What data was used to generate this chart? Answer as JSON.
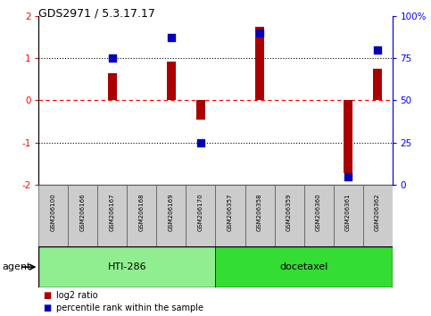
{
  "title": "GDS2971 / 5.3.17.17",
  "samples": [
    "GSM206100",
    "GSM206166",
    "GSM206167",
    "GSM206168",
    "GSM206169",
    "GSM206170",
    "GSM206357",
    "GSM206358",
    "GSM206359",
    "GSM206360",
    "GSM206361",
    "GSM206362"
  ],
  "log2_ratio": [
    0.0,
    0.0,
    0.65,
    0.0,
    0.92,
    -0.45,
    0.0,
    1.75,
    0.0,
    0.0,
    -1.72,
    0.75
  ],
  "percentile_rank": [
    null,
    null,
    75,
    null,
    87,
    25,
    null,
    90,
    null,
    null,
    5,
    80
  ],
  "ylim_left": [
    -2,
    2
  ],
  "ylim_right": [
    0,
    100
  ],
  "yticks_left": [
    -2,
    -1,
    0,
    1,
    2
  ],
  "yticks_right": [
    0,
    25,
    50,
    75,
    100
  ],
  "ytick_labels_right": [
    "0",
    "25",
    "50",
    "75",
    "100%"
  ],
  "groups": [
    {
      "label": "HTI-286",
      "start": 0,
      "end": 5,
      "color": "#90EE90"
    },
    {
      "label": "docetaxel",
      "start": 6,
      "end": 11,
      "color": "#33DD33"
    }
  ],
  "group_row_label": "agent",
  "bar_color": "#AA0000",
  "dot_color": "#0000BB",
  "plot_bg_color": "#FFFFFF",
  "legend_items": [
    {
      "label": "log2 ratio",
      "color": "#AA0000"
    },
    {
      "label": "percentile rank within the sample",
      "color": "#0000BB"
    }
  ],
  "bar_width": 0.3,
  "dot_size": 40
}
